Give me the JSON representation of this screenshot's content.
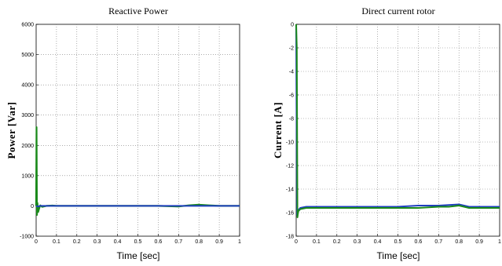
{
  "chart_data": [
    {
      "type": "line",
      "title": "Reactive Power",
      "xlabel": "Time [sec]",
      "ylabel": "Power [Var]",
      "xlim": [
        0,
        1
      ],
      "ylim": [
        -1000,
        6000
      ],
      "xticks": [
        0,
        0.1,
        0.2,
        0.3,
        0.4,
        0.5,
        0.6,
        0.7,
        0.8,
        0.9,
        1
      ],
      "xtick_labels": [
        "0",
        "0.1",
        "0.2",
        "0.3",
        "0.4",
        "0.5",
        "0.6",
        "0.7",
        "0.8",
        "0.9",
        "1"
      ],
      "yticks": [
        -1000,
        0,
        1000,
        2000,
        3000,
        4000,
        5000,
        6000
      ],
      "ytick_labels": [
        "-1000",
        "0",
        "1000",
        "2000",
        "3000",
        "4000",
        "5000",
        "6000"
      ],
      "grid": true,
      "series": [
        {
          "color": "#1a8a1a",
          "x": [
            0,
            0.002,
            0.004,
            0.006,
            0.01,
            0.015,
            0.02,
            0.03,
            0.05,
            0.08,
            0.1,
            0.2,
            0.3,
            0.4,
            0.5,
            0.6,
            0.7,
            0.75,
            0.8,
            0.85,
            0.9,
            1.0
          ],
          "y": [
            0,
            2600,
            -300,
            100,
            -200,
            -80,
            20,
            -30,
            0,
            10,
            0,
            0,
            0,
            0,
            0,
            0,
            -20,
            20,
            40,
            20,
            0,
            0
          ]
        },
        {
          "color": "#1f3fbf",
          "x": [
            0,
            0.01,
            0.02,
            0.05,
            0.1,
            0.2,
            0.3,
            0.4,
            0.5,
            0.6,
            0.7,
            0.8,
            0.9,
            1.0
          ],
          "y": [
            0,
            -20,
            0,
            0,
            0,
            0,
            0,
            0,
            0,
            0,
            0,
            0,
            0,
            0
          ]
        }
      ]
    },
    {
      "type": "line",
      "title": "Direct current rotor",
      "xlabel": "Time [sec]",
      "ylabel": "Current [A]",
      "xlim": [
        0,
        1
      ],
      "ylim": [
        -18,
        0
      ],
      "xticks": [
        0,
        0.1,
        0.2,
        0.3,
        0.4,
        0.5,
        0.6,
        0.7,
        0.8,
        0.9,
        1
      ],
      "xtick_labels": [
        "0",
        "0.1",
        "0.2",
        "0.3",
        "0.4",
        "0.5",
        "0.6",
        "0.7",
        "0.8",
        "0.9",
        "1"
      ],
      "yticks": [
        -18,
        -16,
        -14,
        -12,
        -10,
        -8,
        -6,
        -4,
        -2,
        0
      ],
      "ytick_labels": [
        "-18",
        "-16",
        "-14",
        "-12",
        "-10",
        "-8",
        "-6",
        "-4",
        "-2",
        "0"
      ],
      "grid": true,
      "series": [
        {
          "color": "#1f3fbf",
          "x": [
            0,
            0.004,
            0.01,
            0.02,
            0.05,
            0.1,
            0.2,
            0.3,
            0.4,
            0.5,
            0.6,
            0.7,
            0.8,
            0.85,
            0.9,
            1.0
          ],
          "y": [
            0,
            -16.2,
            -15.8,
            -15.6,
            -15.5,
            -15.5,
            -15.5,
            -15.5,
            -15.5,
            -15.5,
            -15.4,
            -15.4,
            -15.3,
            -15.5,
            -15.5,
            -15.5
          ]
        },
        {
          "color": "#1a8a1a",
          "x": [
            0,
            0.003,
            0.006,
            0.01,
            0.02,
            0.05,
            0.1,
            0.2,
            0.3,
            0.4,
            0.5,
            0.6,
            0.7,
            0.75,
            0.8,
            0.85,
            0.9,
            1.0
          ],
          "y": [
            0,
            -2,
            -16.4,
            -15.9,
            -15.7,
            -15.6,
            -15.6,
            -15.6,
            -15.6,
            -15.6,
            -15.6,
            -15.6,
            -15.5,
            -15.5,
            -15.4,
            -15.6,
            -15.6,
            -15.6
          ]
        }
      ]
    }
  ]
}
